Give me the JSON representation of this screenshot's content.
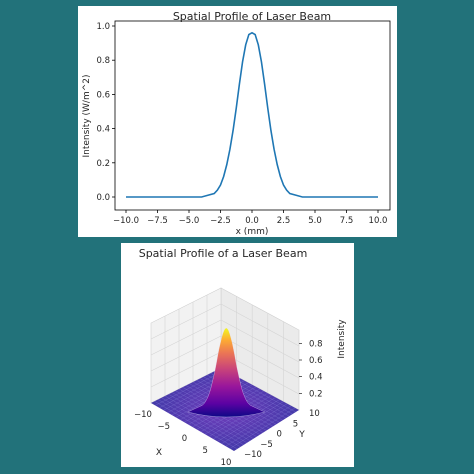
{
  "background_color": "#22727a",
  "chart_data": [
    {
      "type": "line",
      "title": "Spatial Profile of Laser Beam",
      "xlabel": "x (mm)",
      "ylabel": "Intensity (W/m^2)",
      "xlim": [
        -10.0,
        10.0
      ],
      "ylim": [
        0.0,
        1.0
      ],
      "x_ticks": [
        "−10.0",
        "−7.5",
        "−5.0",
        "−2.5",
        "0.0",
        "2.5",
        "5.0",
        "7.5",
        "10.0"
      ],
      "y_ticks": [
        "0.0",
        "0.2",
        "0.4",
        "0.6",
        "0.8",
        "1.0"
      ],
      "grid": false,
      "line_color": "#1f77b4",
      "series": [
        {
          "x": [
            -10.0,
            -9.0,
            -8.0,
            -7.0,
            -6.0,
            -5.0,
            -4.5,
            -4.0,
            -3.5,
            -3.0,
            -2.75,
            -2.5,
            -2.25,
            -2.0,
            -1.75,
            -1.5,
            -1.25,
            -1.0,
            -0.75,
            -0.5,
            -0.25,
            0.0,
            0.25,
            0.5,
            0.75,
            1.0,
            1.25,
            1.5,
            1.75,
            2.0,
            2.25,
            2.5,
            2.75,
            3.0,
            3.5,
            4.0,
            4.5,
            5.0,
            6.0,
            7.0,
            8.0,
            9.0,
            10.0
          ],
          "y": [
            0.0,
            0.0,
            0.0,
            0.0,
            0.0,
            0.0,
            0.0,
            0.0,
            0.01,
            0.02,
            0.04,
            0.07,
            0.12,
            0.19,
            0.28,
            0.39,
            0.52,
            0.66,
            0.79,
            0.89,
            0.95,
            0.96,
            0.95,
            0.89,
            0.79,
            0.66,
            0.52,
            0.39,
            0.28,
            0.19,
            0.12,
            0.07,
            0.04,
            0.02,
            0.01,
            0.0,
            0.0,
            0.0,
            0.0,
            0.0,
            0.0,
            0.0,
            0.0
          ]
        }
      ]
    },
    {
      "type": "surface",
      "title": "Spatial Profile of a Laser Beam",
      "xlabel": "X",
      "ylabel": "Y",
      "zlabel": "Intensity",
      "x_ticks": [
        "−10",
        "−5",
        "0",
        "5",
        "10"
      ],
      "y_ticks": [
        "−10",
        "−5",
        "0",
        "5",
        "10"
      ],
      "z_ticks": [
        "0.2",
        "0.4",
        "0.6",
        "0.8"
      ],
      "xlim": [
        -10,
        10
      ],
      "ylim": [
        -10,
        10
      ],
      "zlim": [
        0,
        0.96
      ],
      "peak": 0.96,
      "colormap": "plasma"
    }
  ]
}
